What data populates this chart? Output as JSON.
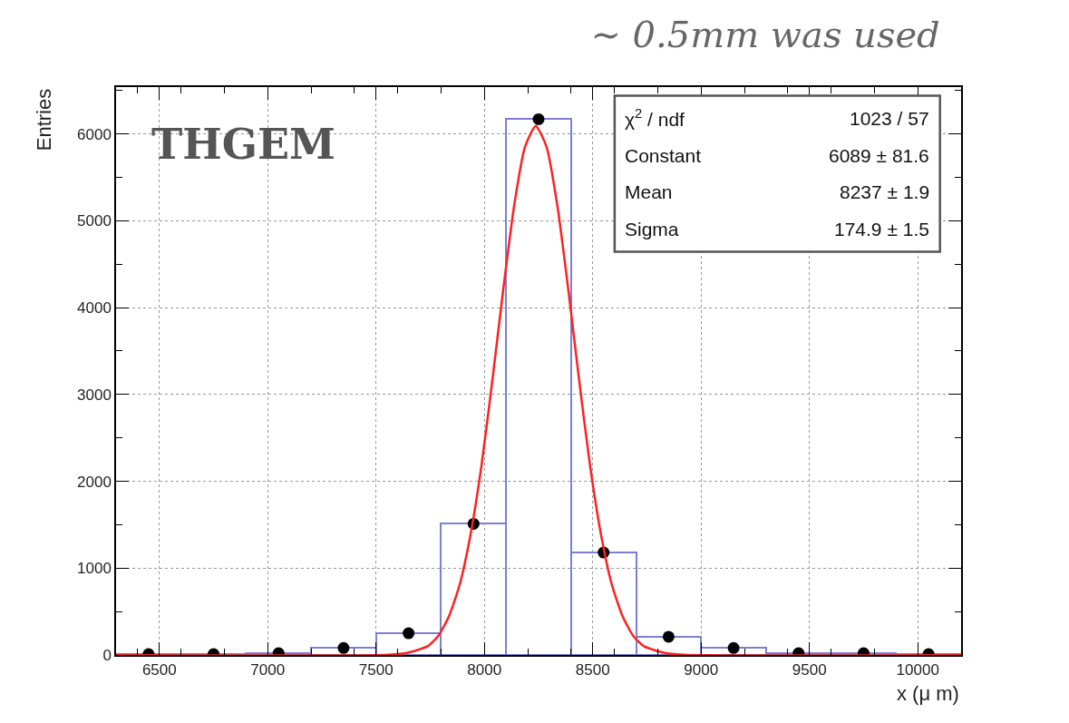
{
  "chart_data": {
    "type": "histogram",
    "title": "∼ 0.5mm was used",
    "xlabel": "x (μ m)",
    "ylabel": "Entries",
    "bins": [
      6300,
      6600,
      6900,
      7200,
      7500,
      7800,
      8100,
      8400,
      8700,
      9000,
      9300,
      9600,
      9900,
      10200
    ],
    "series": [
      {
        "color": "#7b7fd6",
        "values": [
          10,
          10,
          20,
          80,
          250,
          1510,
          6170,
          1180,
          210,
          80,
          20,
          20,
          10
        ]
      },
      {
        "type": "scatter",
        "color": "#000000",
        "marker": "circle",
        "x": [
          6450,
          6750,
          7050,
          7350,
          7650,
          7950,
          8250,
          8550,
          8850,
          9150,
          9450,
          9750,
          10050
        ],
        "values": [
          10,
          10,
          20,
          80,
          250,
          1510,
          6170,
          1180,
          210,
          80,
          20,
          20,
          10
        ]
      },
      {
        "type": "line",
        "color": "#ff2020",
        "marker": "none",
        "line_style": "solid",
        "x": [
          6300,
          7537,
          7637,
          7737,
          7787,
          7837,
          7887,
          7937,
          7987,
          8037,
          8087,
          8137,
          8187,
          8237,
          8287,
          8337,
          8387,
          8437,
          8487,
          8537,
          8587,
          8637,
          8687,
          8737,
          8837,
          8937,
          10200
        ],
        "values": [
          0,
          0,
          20,
          100,
          220,
          450,
          820,
          1400,
          2190,
          3170,
          4210,
          5170,
          5850,
          6090,
          5850,
          5170,
          4210,
          3170,
          2190,
          1400,
          820,
          450,
          220,
          100,
          20,
          0,
          0
        ]
      }
    ],
    "annotations": [
      "THGEM",
      "χ$^{2}$ / ndf",
      "1023 / 57",
      "Constant",
      "6089 ± 81.6",
      "Mean",
      "8237 ± 1.9",
      "Sigma",
      "174.9 ± 1.5"
    ],
    "xlim": [
      6300,
      10200
    ],
    "xticks": [
      6500,
      7000,
      7500,
      8000,
      8500,
      9000,
      9500,
      10000
    ],
    "ylim": [
      0,
      6540
    ],
    "yticks": [
      0,
      1000,
      2000,
      3000,
      4000,
      5000,
      6000
    ],
    "grid": true
  }
}
